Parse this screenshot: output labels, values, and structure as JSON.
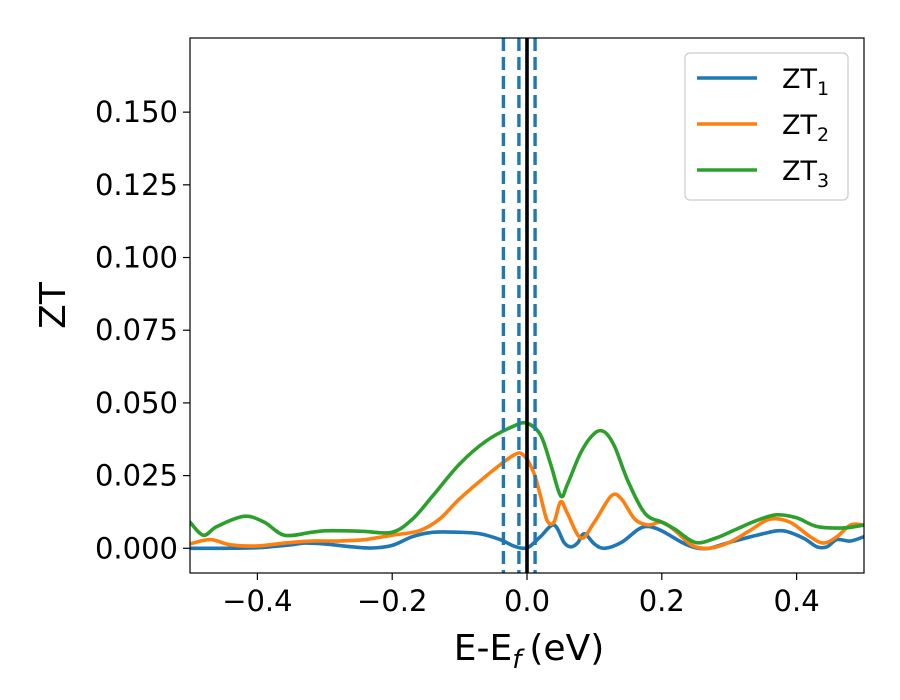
{
  "chart_data": {
    "type": "line",
    "xlabel_main": "E-E",
    "xlabel_sub": "f",
    "xlabel_unit": "(eV)",
    "ylabel": "ZT",
    "xlim": [
      -0.5,
      0.5
    ],
    "ylim": [
      -0.0085,
      0.1755
    ],
    "x_ticks": [
      -0.4,
      -0.2,
      0.0,
      0.2,
      0.4
    ],
    "x_tick_labels": [
      "−0.4",
      "−0.2",
      "0.0",
      "0.2",
      "0.4"
    ],
    "y_ticks": [
      0.0,
      0.025,
      0.05,
      0.075,
      0.1,
      0.125,
      0.15
    ],
    "y_tick_labels": [
      "0.000",
      "0.025",
      "0.050",
      "0.075",
      "0.100",
      "0.125",
      "0.150"
    ],
    "grid": false,
    "legend_position": "top-right",
    "vlines": [
      {
        "x": -0.035,
        "style": "dashed",
        "color": "#1f77b4"
      },
      {
        "x": -0.012,
        "style": "dashed",
        "color": "#1f77b4"
      },
      {
        "x": 0.012,
        "style": "dashed",
        "color": "#1f77b4"
      },
      {
        "x": 0.0,
        "style": "solid",
        "color": "#000000"
      }
    ],
    "series": [
      {
        "name_main": "ZT",
        "name_sub": "1",
        "color": "#1f77b4",
        "points": [
          [
            -0.5,
            0.0
          ],
          [
            -0.45,
            0.0
          ],
          [
            -0.4,
            0.0002
          ],
          [
            -0.35,
            0.0012
          ],
          [
            -0.33,
            0.0018
          ],
          [
            -0.3,
            0.0015
          ],
          [
            -0.26,
            0.0005
          ],
          [
            -0.23,
            0.0001
          ],
          [
            -0.2,
            0.001
          ],
          [
            -0.17,
            0.004
          ],
          [
            -0.14,
            0.0055
          ],
          [
            -0.1,
            0.0055
          ],
          [
            -0.07,
            0.005
          ],
          [
            -0.04,
            0.003
          ],
          [
            -0.02,
            0.0008
          ],
          [
            -0.005,
            0.0
          ],
          [
            0.005,
            0.0008
          ],
          [
            0.02,
            0.004
          ],
          [
            0.04,
            0.008
          ],
          [
            0.055,
            0.002
          ],
          [
            0.065,
            0.0005
          ],
          [
            0.075,
            0.0018
          ],
          [
            0.085,
            0.005
          ],
          [
            0.1,
            0.0015
          ],
          [
            0.115,
            0.0
          ],
          [
            0.14,
            0.002
          ],
          [
            0.165,
            0.0065
          ],
          [
            0.18,
            0.0075
          ],
          [
            0.2,
            0.006
          ],
          [
            0.23,
            0.002
          ],
          [
            0.25,
            0.0002
          ],
          [
            0.27,
            0.0
          ],
          [
            0.3,
            0.002
          ],
          [
            0.35,
            0.005
          ],
          [
            0.38,
            0.006
          ],
          [
            0.41,
            0.0035
          ],
          [
            0.43,
            0.0005
          ],
          [
            0.445,
            0.0005
          ],
          [
            0.46,
            0.003
          ],
          [
            0.48,
            0.0025
          ],
          [
            0.5,
            0.004
          ]
        ]
      },
      {
        "name_main": "ZT",
        "name_sub": "2",
        "color": "#ff7f0e",
        "points": [
          [
            -0.5,
            0.0015
          ],
          [
            -0.47,
            0.003
          ],
          [
            -0.44,
            0.0012
          ],
          [
            -0.4,
            0.0008
          ],
          [
            -0.36,
            0.0018
          ],
          [
            -0.32,
            0.0025
          ],
          [
            -0.28,
            0.0025
          ],
          [
            -0.24,
            0.003
          ],
          [
            -0.2,
            0.0045
          ],
          [
            -0.16,
            0.006
          ],
          [
            -0.13,
            0.01
          ],
          [
            -0.1,
            0.017
          ],
          [
            -0.06,
            0.025
          ],
          [
            -0.02,
            0.032
          ],
          [
            -0.005,
            0.032
          ],
          [
            0.01,
            0.026
          ],
          [
            0.02,
            0.018
          ],
          [
            0.03,
            0.0095
          ],
          [
            0.04,
            0.009
          ],
          [
            0.05,
            0.016
          ],
          [
            0.06,
            0.012
          ],
          [
            0.08,
            0.0035
          ],
          [
            0.1,
            0.009
          ],
          [
            0.125,
            0.018
          ],
          [
            0.14,
            0.017
          ],
          [
            0.16,
            0.01
          ],
          [
            0.18,
            0.008
          ],
          [
            0.2,
            0.009
          ],
          [
            0.22,
            0.006
          ],
          [
            0.245,
            0.001
          ],
          [
            0.27,
            0.0
          ],
          [
            0.3,
            0.002
          ],
          [
            0.33,
            0.006
          ],
          [
            0.36,
            0.01
          ],
          [
            0.39,
            0.009
          ],
          [
            0.42,
            0.004
          ],
          [
            0.44,
            0.0018
          ],
          [
            0.46,
            0.004
          ],
          [
            0.48,
            0.008
          ],
          [
            0.5,
            0.008
          ]
        ]
      },
      {
        "name_main": "ZT",
        "name_sub": "3",
        "color": "#2ca02c",
        "points": [
          [
            -0.5,
            0.009
          ],
          [
            -0.48,
            0.0045
          ],
          [
            -0.46,
            0.0075
          ],
          [
            -0.42,
            0.011
          ],
          [
            -0.39,
            0.009
          ],
          [
            -0.36,
            0.0045
          ],
          [
            -0.32,
            0.0055
          ],
          [
            -0.3,
            0.006
          ],
          [
            -0.27,
            0.006
          ],
          [
            -0.24,
            0.0058
          ],
          [
            -0.2,
            0.0055
          ],
          [
            -0.17,
            0.01
          ],
          [
            -0.14,
            0.018
          ],
          [
            -0.1,
            0.029
          ],
          [
            -0.06,
            0.037
          ],
          [
            -0.02,
            0.042
          ],
          [
            0.0,
            0.043
          ],
          [
            0.02,
            0.039
          ],
          [
            0.035,
            0.029
          ],
          [
            0.05,
            0.018
          ],
          [
            0.06,
            0.022
          ],
          [
            0.08,
            0.033
          ],
          [
            0.1,
            0.0395
          ],
          [
            0.115,
            0.04
          ],
          [
            0.13,
            0.035
          ],
          [
            0.15,
            0.023
          ],
          [
            0.175,
            0.012
          ],
          [
            0.2,
            0.009
          ],
          [
            0.22,
            0.0065
          ],
          [
            0.25,
            0.002
          ],
          [
            0.28,
            0.0035
          ],
          [
            0.31,
            0.0065
          ],
          [
            0.34,
            0.0095
          ],
          [
            0.37,
            0.0115
          ],
          [
            0.4,
            0.0105
          ],
          [
            0.43,
            0.0075
          ],
          [
            0.47,
            0.007
          ],
          [
            0.5,
            0.008
          ]
        ]
      }
    ]
  }
}
